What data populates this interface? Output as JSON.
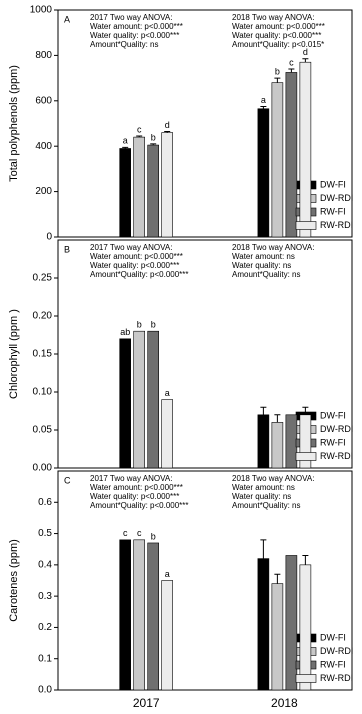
{
  "chart_data": [
    {
      "type": "bar",
      "panel": "A",
      "ylabel": "Total polyphenols (ppm)",
      "ylim": [
        0,
        1000
      ],
      "yticks": [
        0,
        200,
        400,
        600,
        800,
        1000
      ],
      "annotations": [
        [
          "2017 Two way ANOVA:",
          "Water amount:  p<0.000***",
          "Water quality: p<0.000***",
          "Amount*Quality: ns"
        ],
        [
          "2018 Two way ANOVA:",
          "Water amount:  p<0.000***",
          "Water quality: p<0.000***",
          "Amount*Quality: p<0.015*"
        ]
      ],
      "series": [
        {
          "name": "DW-FI",
          "color": "#000000",
          "values": [
            390,
            565
          ],
          "errors": [
            5,
            10
          ],
          "labels": [
            "a",
            "a"
          ]
        },
        {
          "name": "DW-RDI",
          "color": "#c8c8c8",
          "values": [
            440,
            680
          ],
          "errors": [
            5,
            20
          ],
          "labels": [
            "c",
            "b"
          ]
        },
        {
          "name": "RW-FI",
          "color": "#707070",
          "values": [
            405,
            725
          ],
          "errors": [
            5,
            15
          ],
          "labels": [
            "b",
            "c"
          ]
        },
        {
          "name": "RW-RDI",
          "color": "#ececec",
          "values": [
            460,
            770
          ],
          "errors": [
            5,
            15
          ],
          "labels": [
            "d",
            "d"
          ]
        }
      ]
    },
    {
      "type": "bar",
      "panel": "B",
      "ylabel": "Chlorophyll (ppm )",
      "ylim": [
        0,
        0.3
      ],
      "yticks": [
        {
          "value": 0,
          "label": "0.00"
        },
        0.05,
        {
          "value": 0.1,
          "label": "0.10"
        },
        0.15,
        {
          "value": 0.2,
          "label": "0.20"
        },
        0.25
      ],
      "annotations": [
        [
          "2017 Two way ANOVA:",
          "Water amount:  p<0.000***",
          "Water quality: p<0.000***",
          "Amount*Quality: p<0.000***"
        ],
        [
          "2018 Two way ANOVA:",
          "Water amount:  ns",
          "Water quality: ns",
          "Amount*Quality: ns"
        ]
      ],
      "series": [
        {
          "name": "DW-FI",
          "color": "#000000",
          "values": [
            0.17,
            0.07
          ],
          "errors": [
            null,
            0.01
          ],
          "labels": [
            "ab",
            null
          ]
        },
        {
          "name": "DW-RDI",
          "color": "#c8c8c8",
          "values": [
            0.18,
            0.06
          ],
          "errors": [
            null,
            0.01
          ],
          "labels": [
            "b",
            null
          ]
        },
        {
          "name": "RW-FI",
          "color": "#707070",
          "values": [
            0.18,
            0.07
          ],
          "errors": [
            null,
            null
          ],
          "labels": [
            "b",
            null
          ]
        },
        {
          "name": "RW-RDI",
          "color": "#ececec",
          "values": [
            0.09,
            0.07
          ],
          "errors": [
            null,
            0.01
          ],
          "labels": [
            "a",
            null
          ]
        }
      ]
    },
    {
      "type": "bar",
      "panel": "C",
      "ylabel": "Carotenes (ppm)",
      "categories": [
        "2017",
        "2018"
      ],
      "ylim": [
        0,
        0.7
      ],
      "yticks": [
        {
          "value": 0,
          "label": "0.0"
        },
        0.1,
        0.2,
        0.3,
        0.4,
        0.5,
        0.6
      ],
      "annotations": [
        [
          "2017 Two way ANOVA:",
          "Water amount:  p<0.000***",
          "Water quality: p<0.000***",
          "Amount*Quality: p<0.000***"
        ],
        [
          "2018 Two way ANOVA:",
          "Water amount:  ns",
          "Water quality: ns",
          "Amount*Quality: ns"
        ]
      ],
      "series": [
        {
          "name": "DW-FI",
          "color": "#000000",
          "values": [
            0.48,
            0.42
          ],
          "errors": [
            null,
            0.06
          ],
          "labels": [
            "c",
            null
          ]
        },
        {
          "name": "DW-RDI",
          "color": "#c8c8c8",
          "values": [
            0.48,
            0.34
          ],
          "errors": [
            null,
            0.03
          ],
          "labels": [
            "c",
            null
          ]
        },
        {
          "name": "RW-FI",
          "color": "#707070",
          "values": [
            0.47,
            0.43
          ],
          "errors": [
            null,
            null
          ],
          "labels": [
            "b",
            null
          ]
        },
        {
          "name": "RW-RDI",
          "color": "#ececec",
          "values": [
            0.35,
            0.4
          ],
          "errors": [
            null,
            0.03
          ],
          "labels": [
            "a",
            null
          ]
        }
      ]
    }
  ]
}
